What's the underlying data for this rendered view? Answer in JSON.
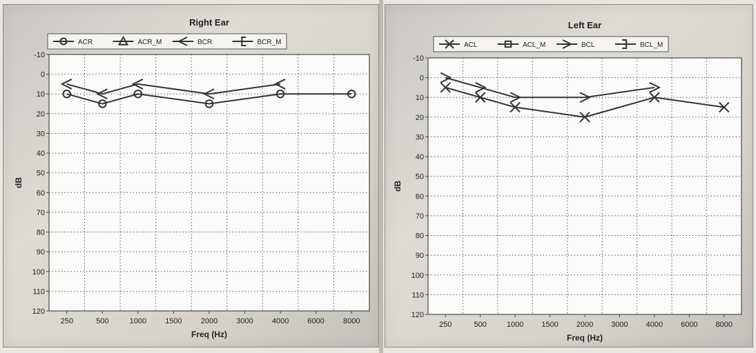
{
  "chart_data": [
    {
      "type": "line",
      "title": "Right Ear",
      "xlabel": "Freq (Hz)",
      "ylabel": "dB",
      "x_ticks": [
        "250",
        "500",
        "1000",
        "1500",
        "2000",
        "3000",
        "4000",
        "6000",
        "8000"
      ],
      "y_ticks": [
        "-10",
        "0",
        "10",
        "20",
        "30",
        "40",
        "50",
        "60",
        "70",
        "80",
        "90",
        "100",
        "110",
        "120"
      ],
      "ylim": [
        -10,
        120
      ],
      "y_inverted": true,
      "grid": true,
      "legend_position": "top",
      "legend": [
        {
          "name": "ACR",
          "marker": "circle"
        },
        {
          "name": "ACR_M",
          "marker": "triangle"
        },
        {
          "name": "BCR",
          "marker": "left-chevron"
        },
        {
          "name": "BCR_M",
          "marker": "left-bracket"
        }
      ],
      "series": [
        {
          "name": "ACR",
          "marker": "circle",
          "x": [
            "250",
            "500",
            "1000",
            "2000",
            "4000",
            "8000"
          ],
          "values": [
            10,
            15,
            10,
            15,
            10,
            10
          ]
        },
        {
          "name": "BCR",
          "marker": "left-chevron",
          "x": [
            "250",
            "500",
            "1000",
            "2000",
            "4000"
          ],
          "values": [
            5,
            10,
            5,
            10,
            5
          ]
        }
      ]
    },
    {
      "type": "line",
      "title": "Left Ear",
      "xlabel": "Freq (Hz)",
      "ylabel": "dB",
      "x_ticks": [
        "250",
        "500",
        "1000",
        "1500",
        "2000",
        "3000",
        "4000",
        "6000",
        "8000"
      ],
      "y_ticks": [
        "-10",
        "0",
        "10",
        "20",
        "30",
        "40",
        "50",
        "60",
        "70",
        "80",
        "90",
        "100",
        "110",
        "120"
      ],
      "ylim": [
        -10,
        120
      ],
      "y_inverted": true,
      "grid": true,
      "legend_position": "top",
      "legend": [
        {
          "name": "ACL",
          "marker": "x"
        },
        {
          "name": "ACL_M",
          "marker": "square"
        },
        {
          "name": "BCL",
          "marker": "right-chevron"
        },
        {
          "name": "BCL_M",
          "marker": "right-bracket"
        }
      ],
      "series": [
        {
          "name": "ACL",
          "marker": "x",
          "x": [
            "250",
            "500",
            "1000",
            "2000",
            "4000",
            "8000"
          ],
          "values": [
            5,
            10,
            15,
            20,
            10,
            15
          ]
        },
        {
          "name": "BCL",
          "marker": "right-chevron",
          "x": [
            "250",
            "500",
            "1000",
            "2000",
            "4000"
          ],
          "values": [
            0,
            5,
            10,
            10,
            5
          ]
        }
      ]
    }
  ],
  "colors": {
    "line": "#333333",
    "grid": "#555555",
    "plot_bg": "#fbfbf9"
  }
}
